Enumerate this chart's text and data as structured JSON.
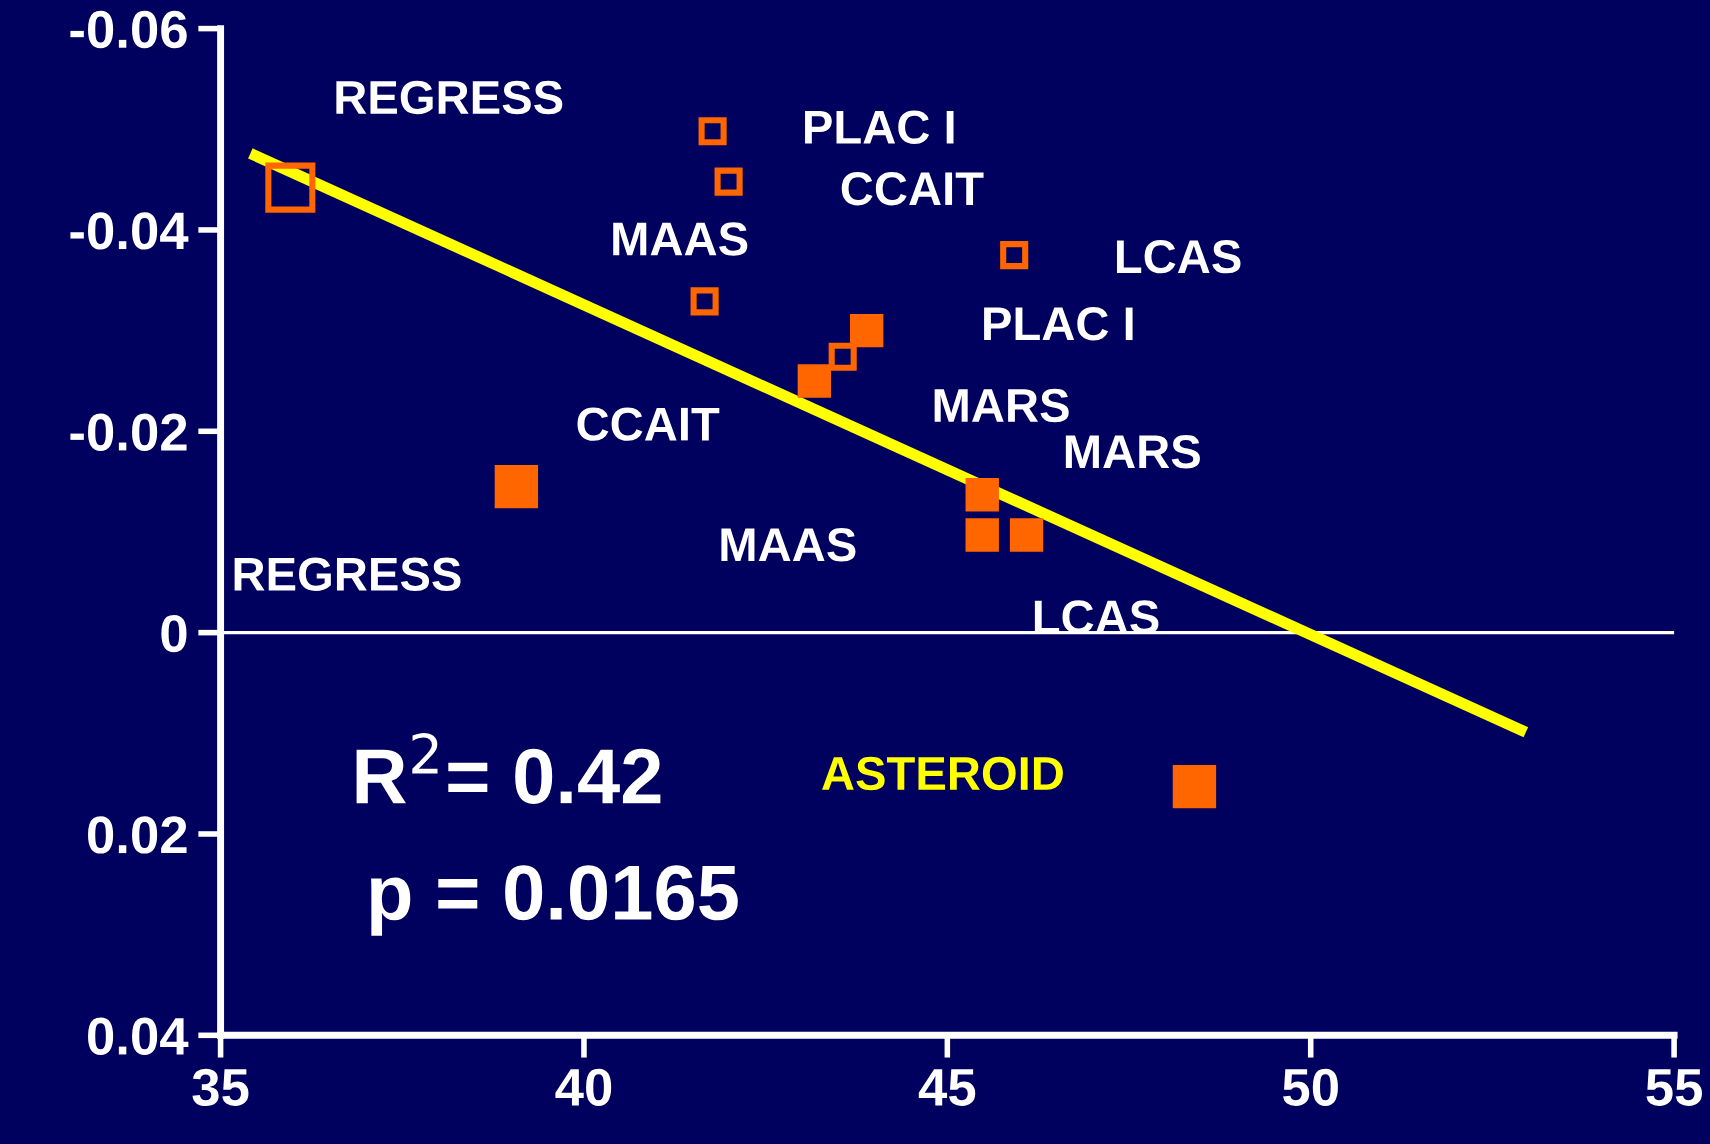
{
  "chart_data": {
    "type": "scatter",
    "marker": "square",
    "grid": false,
    "xlim": [
      35,
      55
    ],
    "xticks": [
      35,
      40,
      45,
      50,
      55
    ],
    "ylim": [
      0.04,
      -0.06
    ],
    "yticks": [
      {
        "value": 0.04,
        "label": "0.04"
      },
      {
        "value": 0.02,
        "label": "0.02"
      },
      {
        "value": 0,
        "label": "0"
      },
      {
        "value": -0.02,
        "label": "-0.02"
      },
      {
        "value": -0.04,
        "label": "-0.04"
      },
      {
        "value": -0.06,
        "label": "-0.06"
      }
    ],
    "series": [
      {
        "color": "#ff6600",
        "x": [
          35.96
        ],
        "values": [
          -0.0442
        ]
      },
      {
        "color": "#ff6600",
        "x": [
          41.77,
          41.99,
          41.66,
          45.92,
          43.56
        ],
        "values": [
          -0.0498,
          -0.0448,
          -0.0329,
          -0.0375,
          -0.0274
        ]
      },
      {
        "color": "#ff6600",
        "x": [
          39.07,
          48.4
        ],
        "values": [
          -0.0145,
          0.0153
        ]
      },
      {
        "color": "#ff6600",
        "x": [
          43.89,
          43.17,
          45.48,
          45.48,
          46.09
        ],
        "values": [
          -0.03,
          -0.025,
          -0.0137,
          -0.0097,
          -0.0097
        ]
      },
      {
        "type": "line",
        "marker": "none",
        "color": "#ffff00",
        "x": [
          35.41,
          52.96
        ],
        "values": [
          -0.0476,
          0.0099
        ]
      }
    ],
    "ref_lines": [
      {
        "axis": "y",
        "value": 0,
        "color": "#ffffff"
      }
    ],
    "annotations": [
      {
        "text": "REGRESS",
        "x": 35.96,
        "y": -0.0442
      },
      {
        "text": "PLAC I",
        "x": 41.77,
        "y": -0.0498
      },
      {
        "text": "CCAIT",
        "x": 41.99,
        "y": -0.0448
      },
      {
        "text": "MAAS",
        "x": 41.66,
        "y": -0.0329
      },
      {
        "text": "LCAS",
        "x": 45.92,
        "y": -0.0375
      },
      {
        "text": "MARS",
        "x": 43.56,
        "y": -0.0274
      },
      {
        "text": "PLAC I",
        "x": 43.89,
        "y": -0.03
      },
      {
        "text": "CCAIT",
        "x": 43.17,
        "y": -0.025
      },
      {
        "text": "REGRESS",
        "x": 39.07,
        "y": -0.0145
      },
      {
        "text": "MARS",
        "x": 45.48,
        "y": -0.0137
      },
      {
        "text": "MAAS",
        "x": 45.48,
        "y": -0.0097
      },
      {
        "text": "LCAS",
        "x": 46.09,
        "y": -0.0097
      },
      "ASTEROID",
      "R$^{2}$= 0.42",
      "p = 0.0165"
    ]
  }
}
